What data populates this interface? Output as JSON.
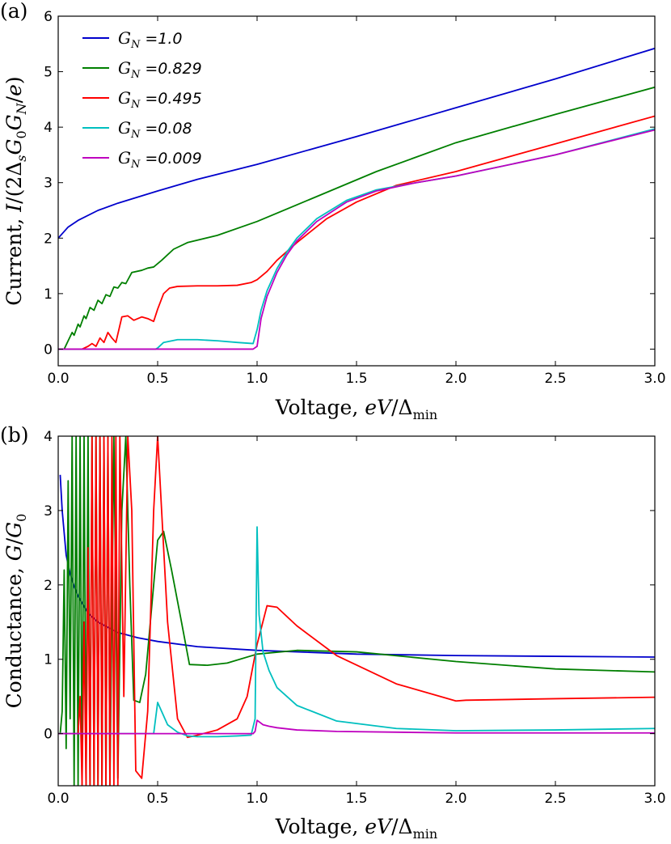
{
  "chart_data": [
    {
      "panel": "(a)",
      "type": "line",
      "xlabel": "Voltage, eV/Δmin",
      "xlabel_parts": [
        "Voltage, ",
        "eV",
        "/Δ",
        "min"
      ],
      "ylabel": "Current, I/(2ΔsG0GN/e)",
      "ylabel_parts": [
        "Current, ",
        "I",
        "/(2Δ",
        "s",
        "G",
        "0",
        "G",
        "N",
        "/",
        "e",
        ")"
      ],
      "xlim": [
        0,
        3.0
      ],
      "ylim": [
        -0.3,
        6
      ],
      "xticks": [
        "0.0",
        "0.5",
        "1.0",
        "1.5",
        "2.0",
        "2.5",
        "3.0"
      ],
      "yticks": [
        "0",
        "1",
        "2",
        "3",
        "4",
        "5",
        "6"
      ],
      "legend_symbol": "G",
      "legend_subscript": "N",
      "legend_position": "top-left",
      "series": [
        {
          "name": "=1.0",
          "color": "#0000cc",
          "x": [
            0,
            0.05,
            0.1,
            0.2,
            0.3,
            0.5,
            0.7,
            1.0,
            1.5,
            2.0,
            2.5,
            3.0
          ],
          "y": [
            2.0,
            2.2,
            2.32,
            2.5,
            2.63,
            2.85,
            3.06,
            3.33,
            3.83,
            4.35,
            4.87,
            5.42
          ]
        },
        {
          "name": "=0.829",
          "color": "#007f00",
          "x": [
            0,
            0.03,
            0.05,
            0.07,
            0.08,
            0.1,
            0.11,
            0.13,
            0.14,
            0.16,
            0.18,
            0.2,
            0.22,
            0.24,
            0.26,
            0.28,
            0.3,
            0.32,
            0.34,
            0.37,
            0.42,
            0.45,
            0.48,
            0.52,
            0.58,
            0.65,
            0.8,
            1.0,
            1.3,
            1.6,
            2.0,
            2.5,
            3.0
          ],
          "y": [
            0,
            0,
            0.15,
            0.3,
            0.25,
            0.45,
            0.4,
            0.6,
            0.55,
            0.75,
            0.7,
            0.88,
            0.82,
            0.98,
            0.95,
            1.12,
            1.1,
            1.2,
            1.18,
            1.38,
            1.42,
            1.46,
            1.48,
            1.6,
            1.8,
            1.92,
            2.05,
            2.3,
            2.75,
            3.2,
            3.72,
            4.23,
            4.72
          ]
        },
        {
          "name": "=0.495",
          "color": "#ff0000",
          "x": [
            0,
            0.12,
            0.15,
            0.17,
            0.19,
            0.21,
            0.23,
            0.25,
            0.27,
            0.29,
            0.32,
            0.35,
            0.38,
            0.42,
            0.45,
            0.48,
            0.5,
            0.53,
            0.56,
            0.6,
            0.7,
            0.8,
            0.9,
            0.97,
            1.0,
            1.05,
            1.1,
            1.2,
            1.35,
            1.5,
            1.7,
            2.0,
            2.5,
            3.0
          ],
          "y": [
            0,
            0,
            0.05,
            0.1,
            0.05,
            0.2,
            0.12,
            0.3,
            0.2,
            0.12,
            0.58,
            0.6,
            0.52,
            0.58,
            0.55,
            0.5,
            0.72,
            1.0,
            1.1,
            1.13,
            1.14,
            1.14,
            1.15,
            1.2,
            1.25,
            1.4,
            1.6,
            1.92,
            2.35,
            2.65,
            2.95,
            3.2,
            3.7,
            4.2
          ]
        },
        {
          "name": "=0.08",
          "color": "#00bfbf",
          "x": [
            0,
            0.49,
            0.5,
            0.53,
            0.6,
            0.7,
            0.8,
            0.9,
            0.98,
            1.0,
            1.02,
            1.05,
            1.1,
            1.15,
            1.2,
            1.3,
            1.45,
            1.6,
            1.8,
            2.0,
            2.5,
            3.0
          ],
          "y": [
            0,
            0,
            0.02,
            0.12,
            0.17,
            0.17,
            0.15,
            0.12,
            0.1,
            0.35,
            0.7,
            1.05,
            1.45,
            1.75,
            2.0,
            2.35,
            2.68,
            2.87,
            3.0,
            3.12,
            3.5,
            3.97
          ]
        },
        {
          "name": "=0.009",
          "color": "#bf00bf",
          "x": [
            0,
            0.98,
            1.0,
            1.02,
            1.05,
            1.1,
            1.15,
            1.2,
            1.3,
            1.45,
            1.6,
            1.8,
            2.0,
            2.5,
            3.0
          ],
          "y": [
            0,
            0,
            0.05,
            0.55,
            0.95,
            1.38,
            1.7,
            1.95,
            2.3,
            2.65,
            2.85,
            3.0,
            3.12,
            3.5,
            3.95
          ]
        }
      ]
    },
    {
      "panel": "(b)",
      "type": "line",
      "xlabel": "Voltage, eV/Δmin",
      "xlabel_parts": [
        "Voltage, ",
        "eV",
        "/Δ",
        "min"
      ],
      "ylabel": "Conductance, G/G0",
      "ylabel_parts": [
        "Conductance, ",
        "G",
        "/",
        "G",
        "0"
      ],
      "xlim": [
        0,
        3.0
      ],
      "ylim": [
        -0.7,
        4
      ],
      "xticks": [
        "0.0",
        "0.5",
        "1.0",
        "1.5",
        "2.0",
        "2.5",
        "3.0"
      ],
      "yticks": [
        "0",
        "1",
        "2",
        "3",
        "4"
      ],
      "series": [
        {
          "name": "GN=1.0",
          "color": "#0000cc",
          "x": [
            0.01,
            0.02,
            0.04,
            0.06,
            0.08,
            0.1,
            0.15,
            0.2,
            0.3,
            0.4,
            0.5,
            0.7,
            1.0,
            1.5,
            2.0,
            2.5,
            3.0
          ],
          "y": [
            3.48,
            3.0,
            2.4,
            2.15,
            1.98,
            1.85,
            1.62,
            1.5,
            1.36,
            1.29,
            1.24,
            1.17,
            1.12,
            1.07,
            1.05,
            1.04,
            1.03
          ]
        },
        {
          "name": "GN=0.829",
          "color": "#007f00",
          "x": [
            0.01,
            0.02,
            0.03,
            0.04,
            0.05,
            0.06,
            0.07,
            0.08,
            0.09,
            0.1,
            0.11,
            0.12,
            0.13,
            0.14,
            0.15,
            0.16,
            0.17,
            0.18,
            0.19,
            0.2,
            0.21,
            0.22,
            0.23,
            0.24,
            0.25,
            0.26,
            0.28,
            0.3,
            0.32,
            0.34,
            0.36,
            0.38,
            0.41,
            0.44,
            0.48,
            0.5,
            0.53,
            0.57,
            0.62,
            0.66,
            0.75,
            0.85,
            1.0,
            1.2,
            1.5,
            2.0,
            2.5,
            3.0
          ],
          "y": [
            0,
            0.3,
            2.2,
            -0.2,
            3.4,
            0.2,
            4.0,
            -0.7,
            4.0,
            -0.7,
            4.0,
            -0.7,
            4.0,
            -0.7,
            4.0,
            -0.7,
            4.0,
            -0.7,
            4.0,
            -0.7,
            4.0,
            -0.7,
            4.0,
            -0.7,
            4.0,
            -0.7,
            4.0,
            -0.6,
            3.0,
            4.0,
            2.0,
            0.45,
            0.42,
            0.8,
            2.0,
            2.6,
            2.72,
            2.2,
            1.5,
            0.93,
            0.92,
            0.95,
            1.07,
            1.12,
            1.1,
            0.97,
            0.87,
            0.83
          ]
        },
        {
          "name": "GN=0.495",
          "color": "#ff0000",
          "x": [
            0,
            0.1,
            0.11,
            0.12,
            0.13,
            0.14,
            0.15,
            0.16,
            0.17,
            0.18,
            0.19,
            0.2,
            0.21,
            0.22,
            0.23,
            0.24,
            0.25,
            0.26,
            0.27,
            0.28,
            0.29,
            0.3,
            0.31,
            0.33,
            0.35,
            0.37,
            0.39,
            0.42,
            0.45,
            0.48,
            0.5,
            0.52,
            0.55,
            0.6,
            0.65,
            0.7,
            0.8,
            0.9,
            0.95,
            1.0,
            1.05,
            1.1,
            1.2,
            1.4,
            1.7,
            2.0,
            2.05,
            2.5,
            3.0
          ],
          "y": [
            0,
            0,
            0.5,
            -0.7,
            1.5,
            -0.7,
            2.5,
            -0.7,
            4.0,
            -0.7,
            4.0,
            -0.7,
            4.0,
            -0.7,
            4.0,
            -0.7,
            4.0,
            -0.7,
            4.0,
            -0.7,
            4.0,
            -0.7,
            4.0,
            0.5,
            4.0,
            3.0,
            -0.5,
            -0.6,
            0.3,
            3.0,
            4.0,
            3.0,
            1.5,
            0.2,
            -0.05,
            -0.02,
            0.05,
            0.2,
            0.5,
            1.2,
            1.72,
            1.7,
            1.45,
            1.05,
            0.67,
            0.44,
            0.45,
            0.47,
            0.49
          ]
        },
        {
          "name": "GN=0.08",
          "color": "#00bfbf",
          "x": [
            0,
            0.48,
            0.5,
            0.52,
            0.55,
            0.6,
            0.65,
            0.7,
            0.8,
            0.9,
            0.97,
            0.99,
            1.0,
            1.01,
            1.03,
            1.06,
            1.1,
            1.2,
            1.4,
            1.7,
            2.0,
            2.5,
            3.0
          ],
          "y": [
            0,
            0,
            0.42,
            0.3,
            0.12,
            0.02,
            -0.03,
            -0.04,
            -0.04,
            -0.03,
            -0.02,
            0.2,
            2.78,
            1.6,
            1.1,
            0.85,
            0.62,
            0.38,
            0.17,
            0.07,
            0.04,
            0.05,
            0.07
          ]
        },
        {
          "name": "GN=0.009",
          "color": "#bf00bf",
          "x": [
            0,
            0.98,
            0.99,
            1.0,
            1.01,
            1.03,
            1.06,
            1.1,
            1.2,
            1.4,
            1.7,
            2.0,
            2.5,
            3.0
          ],
          "y": [
            0,
            0,
            0.03,
            0.18,
            0.16,
            0.12,
            0.1,
            0.08,
            0.05,
            0.03,
            0.02,
            0.01,
            0.01,
            0.01
          ]
        }
      ]
    }
  ]
}
